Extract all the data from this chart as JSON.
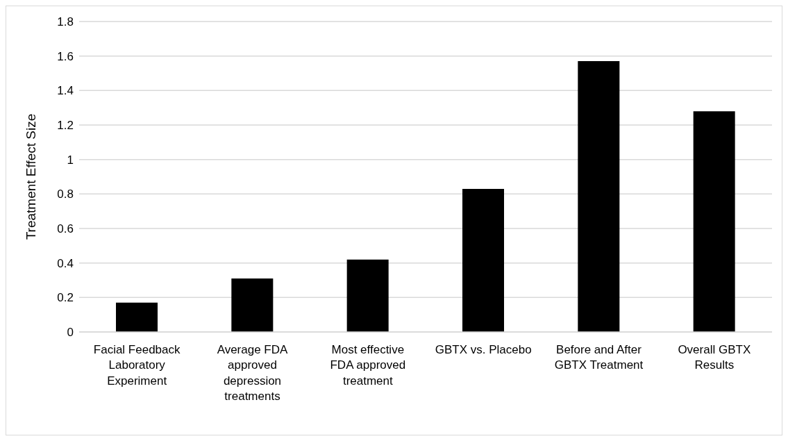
{
  "chart_data": {
    "type": "bar",
    "ylabel": "Treatment Effect Size",
    "categories": [
      "Facial Feedback Laboratory Experiment",
      "Average FDA approved depression treatments",
      "Most effective FDA approved treatment",
      "GBTX vs. Placebo",
      "Before and After GBTX Treatment",
      "Overall GBTX Results"
    ],
    "values": [
      0.17,
      0.31,
      0.42,
      0.83,
      1.57,
      1.28
    ],
    "color": "#000000",
    "ylim": [
      0,
      1.8
    ],
    "yticks": [
      0,
      0.2,
      0.4,
      0.6,
      0.8,
      1,
      1.2,
      1.4,
      1.6,
      1.8
    ],
    "grid": "y"
  }
}
